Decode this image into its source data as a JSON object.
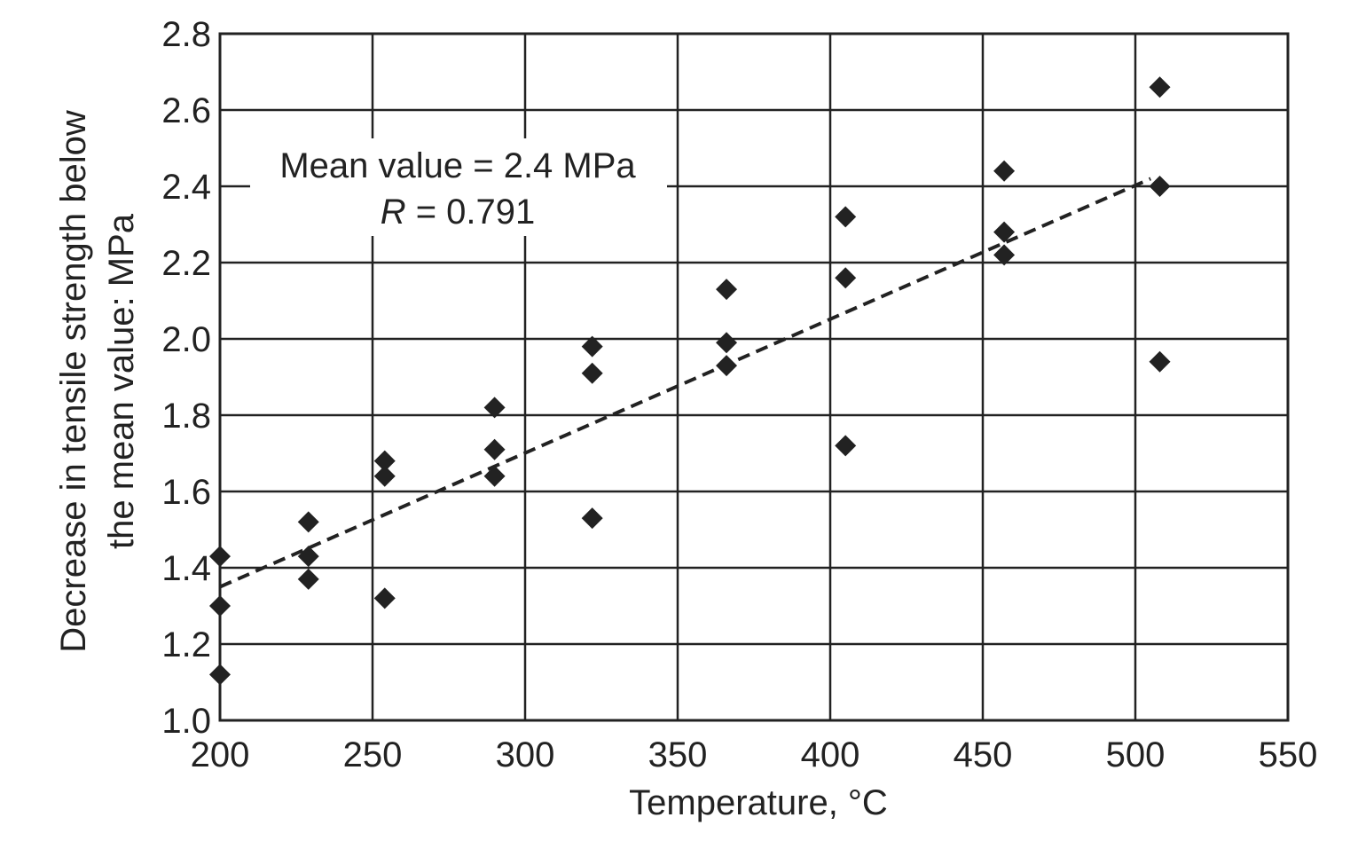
{
  "chart_data": {
    "type": "scatter",
    "title": "",
    "xlabel": "Temperature, °C",
    "ylabel_lines": [
      "Decrease in tensile strength below",
      "the mean value: MPa"
    ],
    "xlim": [
      200,
      550
    ],
    "ylim": [
      1.0,
      2.8
    ],
    "x_ticks": [
      200,
      250,
      300,
      350,
      400,
      450,
      500,
      550
    ],
    "y_ticks": [
      1.0,
      1.2,
      1.4,
      1.6,
      1.8,
      2.0,
      2.2,
      2.4,
      2.6,
      2.8
    ],
    "x_tick_labels": [
      "200",
      "250",
      "300",
      "350",
      "400",
      "450",
      "500",
      "550"
    ],
    "y_tick_labels": [
      "1.0",
      "1.2",
      "1.4",
      "1.6",
      "1.8",
      "2.0",
      "2.2",
      "2.4",
      "2.6",
      "2.8"
    ],
    "grid": true,
    "series": [
      {
        "marker": "diamond",
        "color": "#222222",
        "points": [
          [
            200,
            1.43
          ],
          [
            200,
            1.3
          ],
          [
            200,
            1.12
          ],
          [
            229,
            1.52
          ],
          [
            229,
            1.43
          ],
          [
            229,
            1.37
          ],
          [
            254,
            1.68
          ],
          [
            254,
            1.64
          ],
          [
            254,
            1.32
          ],
          [
            290,
            1.82
          ],
          [
            290,
            1.71
          ],
          [
            290,
            1.64
          ],
          [
            322,
            1.98
          ],
          [
            322,
            1.91
          ],
          [
            322,
            1.53
          ],
          [
            366,
            2.13
          ],
          [
            366,
            1.99
          ],
          [
            366,
            1.93
          ],
          [
            405,
            2.32
          ],
          [
            405,
            2.16
          ],
          [
            405,
            1.72
          ],
          [
            457,
            2.44
          ],
          [
            457,
            2.28
          ],
          [
            457,
            2.22
          ],
          [
            508,
            2.66
          ],
          [
            508,
            2.4
          ],
          [
            508,
            1.94
          ]
        ]
      }
    ],
    "trendline": {
      "style": "dashed",
      "color": "#222222",
      "from": [
        200,
        1.35
      ],
      "to": [
        505,
        2.42
      ]
    },
    "annotation": {
      "line1": "Mean value = 2.4 MPa",
      "line2_var": "R",
      "line2_rest": " = 0.791"
    }
  }
}
